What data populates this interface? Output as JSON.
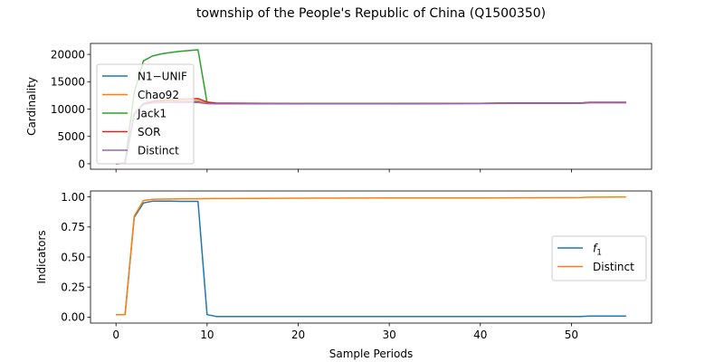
{
  "figure": {
    "title": "township of the People's Republic of China (Q1500350)"
  },
  "chart_data": [
    {
      "type": "line",
      "ylabel": "Cardinality",
      "xlabel": "",
      "xlim": [
        -2.8,
        58.8
      ],
      "ylim": [
        -1000,
        22000
      ],
      "xticks": [
        0,
        10,
        20,
        30,
        40,
        50
      ],
      "xtick_labels_visible": false,
      "yticks": [
        0,
        5000,
        10000,
        15000,
        20000
      ],
      "ytick_labels": [
        "0",
        "5000",
        "10000",
        "15000",
        "20000"
      ],
      "legend_position": "center-left",
      "series": [
        {
          "name": "N1−UNIF",
          "color": "#1f77b4",
          "x": [
            0,
            1,
            2,
            3,
            4,
            5,
            6,
            7,
            8,
            9,
            10,
            11,
            20,
            30,
            40,
            44,
            51,
            52,
            56
          ],
          "y": [
            0,
            100,
            9000,
            10900,
            11200,
            11300,
            11350,
            11400,
            11400,
            11400,
            11100,
            11000,
            11000,
            11000,
            11050,
            11100,
            11100,
            11200,
            11200
          ]
        },
        {
          "name": "Chao92",
          "color": "#ff7f0e",
          "x": [
            0,
            1,
            2,
            3,
            4,
            5,
            6,
            7,
            8,
            9,
            10,
            11,
            20,
            30,
            40,
            44,
            51,
            52,
            56
          ],
          "y": [
            0,
            100,
            9200,
            11000,
            11300,
            11400,
            11450,
            11500,
            11500,
            11500,
            11100,
            11000,
            11000,
            11000,
            11050,
            11100,
            11100,
            11200,
            11200
          ]
        },
        {
          "name": "Jack1",
          "color": "#2ca02c",
          "x": [
            0,
            1,
            2,
            3,
            4,
            5,
            6,
            7,
            8,
            9,
            10,
            11,
            20,
            30,
            40,
            44,
            51,
            52,
            56
          ],
          "y": [
            0,
            200,
            13000,
            18800,
            19700,
            20100,
            20350,
            20550,
            20700,
            20850,
            11200,
            11000,
            11000,
            11000,
            11050,
            11100,
            11100,
            11250,
            11250
          ]
        },
        {
          "name": "SOR",
          "color": "#d62728",
          "x": [
            0,
            1,
            2,
            3,
            4,
            5,
            6,
            7,
            8,
            9,
            10,
            11,
            20,
            30,
            40,
            44,
            51,
            52,
            56
          ],
          "y": [
            0,
            100,
            9100,
            11000,
            11400,
            11600,
            11700,
            11800,
            11850,
            11900,
            11300,
            11100,
            11000,
            11000,
            11050,
            11100,
            11100,
            11200,
            11200
          ]
        },
        {
          "name": "Distinct",
          "color": "#9467bd",
          "x": [
            0,
            1,
            2,
            3,
            4,
            5,
            6,
            7,
            8,
            9,
            10,
            11,
            20,
            30,
            40,
            44,
            51,
            52,
            56
          ],
          "y": [
            0,
            100,
            9000,
            10900,
            11100,
            11200,
            11200,
            11200,
            11200,
            11200,
            11000,
            10950,
            10950,
            10950,
            11000,
            11050,
            11050,
            11150,
            11150
          ]
        }
      ]
    },
    {
      "type": "line",
      "ylabel": "Indicators",
      "xlabel": "Sample Periods",
      "xlim": [
        -2.8,
        58.8
      ],
      "ylim": [
        -0.05,
        1.05
      ],
      "xticks": [
        0,
        10,
        20,
        30,
        40,
        50
      ],
      "xtick_labels": [
        "0",
        "10",
        "20",
        "30",
        "40",
        "50"
      ],
      "yticks": [
        0.0,
        0.25,
        0.5,
        0.75,
        1.0
      ],
      "ytick_labels": [
        "0.00",
        "0.25",
        "0.50",
        "0.75",
        "1.00"
      ],
      "legend_position": "center-right",
      "series": [
        {
          "name": "f_1",
          "label_main": "f",
          "label_sub": "1",
          "color": "#1f77b4",
          "x": [
            0,
            1,
            2,
            3,
            4,
            5,
            6,
            7,
            8,
            9,
            10,
            11,
            20,
            30,
            40,
            50,
            51,
            52,
            56
          ],
          "y": [
            0.02,
            0.02,
            0.83,
            0.95,
            0.965,
            0.965,
            0.965,
            0.963,
            0.963,
            0.963,
            0.02,
            0.005,
            0.005,
            0.005,
            0.005,
            0.005,
            0.005,
            0.008,
            0.008
          ]
        },
        {
          "name": "Distinct",
          "color": "#ff7f0e",
          "x": [
            0,
            1,
            2,
            3,
            4,
            5,
            6,
            7,
            8,
            9,
            10,
            11,
            20,
            30,
            40,
            50,
            51,
            52,
            56
          ],
          "y": [
            0.02,
            0.02,
            0.84,
            0.97,
            0.98,
            0.982,
            0.983,
            0.984,
            0.985,
            0.985,
            0.986,
            0.987,
            0.99,
            0.991,
            0.992,
            0.994,
            0.995,
            0.998,
            1.0
          ]
        }
      ]
    }
  ]
}
